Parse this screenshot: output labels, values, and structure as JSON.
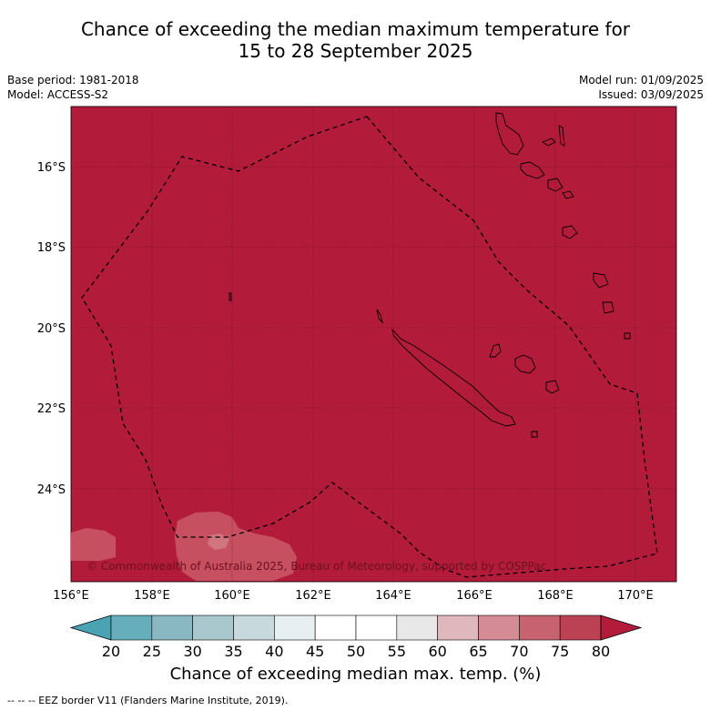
{
  "title": {
    "line1": "Chance of exceeding the median maximum temperature for",
    "line2": "15 to 28 September 2025"
  },
  "meta": {
    "base_period": "Base period: 1981-2018",
    "model": "Model: ACCESS-S2",
    "model_run": "Model run: 01/09/2025",
    "issued": "Issued: 03/09/2025"
  },
  "map": {
    "fill_color": "#B21C3A",
    "copyright": "© Commonwealth of Australia 2025, Bureau of Meteorology, supported by COSPPac",
    "lon_labels": [
      "156°E",
      "158°E",
      "160°E",
      "162°E",
      "164°E",
      "166°E",
      "168°E",
      "170°E"
    ],
    "lat_labels": [
      "16°S",
      "18°S",
      "20°S",
      "22°S",
      "24°S"
    ]
  },
  "colorbar": {
    "ticks": [
      "20",
      "25",
      "30",
      "35",
      "40",
      "45",
      "50",
      "55",
      "60",
      "65",
      "70",
      "75",
      "80"
    ],
    "colors": [
      "#66aebb",
      "#8ab8c2",
      "#a9c8cd",
      "#c8d9dd",
      "#e8eff0",
      "#ffffff",
      "#ffffff",
      "#e8e8e8",
      "#e0b7bc",
      "#d48b94",
      "#c76370",
      "#bb4253"
    ],
    "low_color": "#4aa3b3",
    "high_color": "#b21c3a",
    "label": "Chance of exceeding median max. temp. (%)"
  },
  "footer": "--  --  -- EEZ border V11 (Flanders Marine Institute, 2019)."
}
